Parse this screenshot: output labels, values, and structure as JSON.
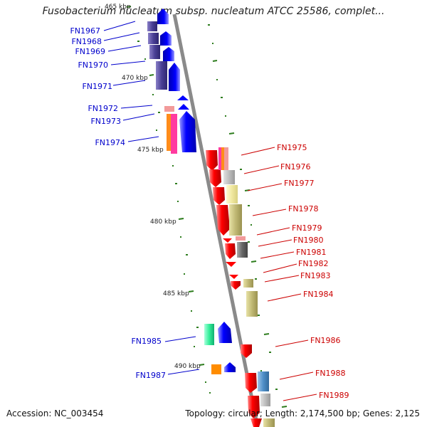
{
  "title": "Fusobacterium nucleatum subsp. nucleatum ATCC 25586, complet...",
  "accession": "Accession: NC_003454",
  "summary": "Topology: circular; Length: 2,174,500 bp; Genes: 2,125",
  "ticks": [
    "465 kbp",
    "470 kbp",
    "475 kbp",
    "480 kbp",
    "485 kbp",
    "490 kbp"
  ],
  "genes_left": [
    "FN1967",
    "FN1968",
    "FN1969",
    "FN1970",
    "FN1971",
    "FN1972",
    "FN1973",
    "FN1974",
    "FN1985",
    "FN1987"
  ],
  "genes_right": [
    "FN1975",
    "FN1976",
    "FN1977",
    "FN1978",
    "FN1979",
    "FN1980",
    "FN1981",
    "FN1982",
    "FN1983",
    "FN1984",
    "FN1986",
    "FN1988",
    "FN1989"
  ],
  "colors": {
    "backbone": "#8a8a8a",
    "tick": "#2e7d1e",
    "forward_label": "#0000cc",
    "reverse_label": "#cc0000",
    "forward_strand": "#0000ff",
    "reverse_strand": "#ff0000"
  }
}
